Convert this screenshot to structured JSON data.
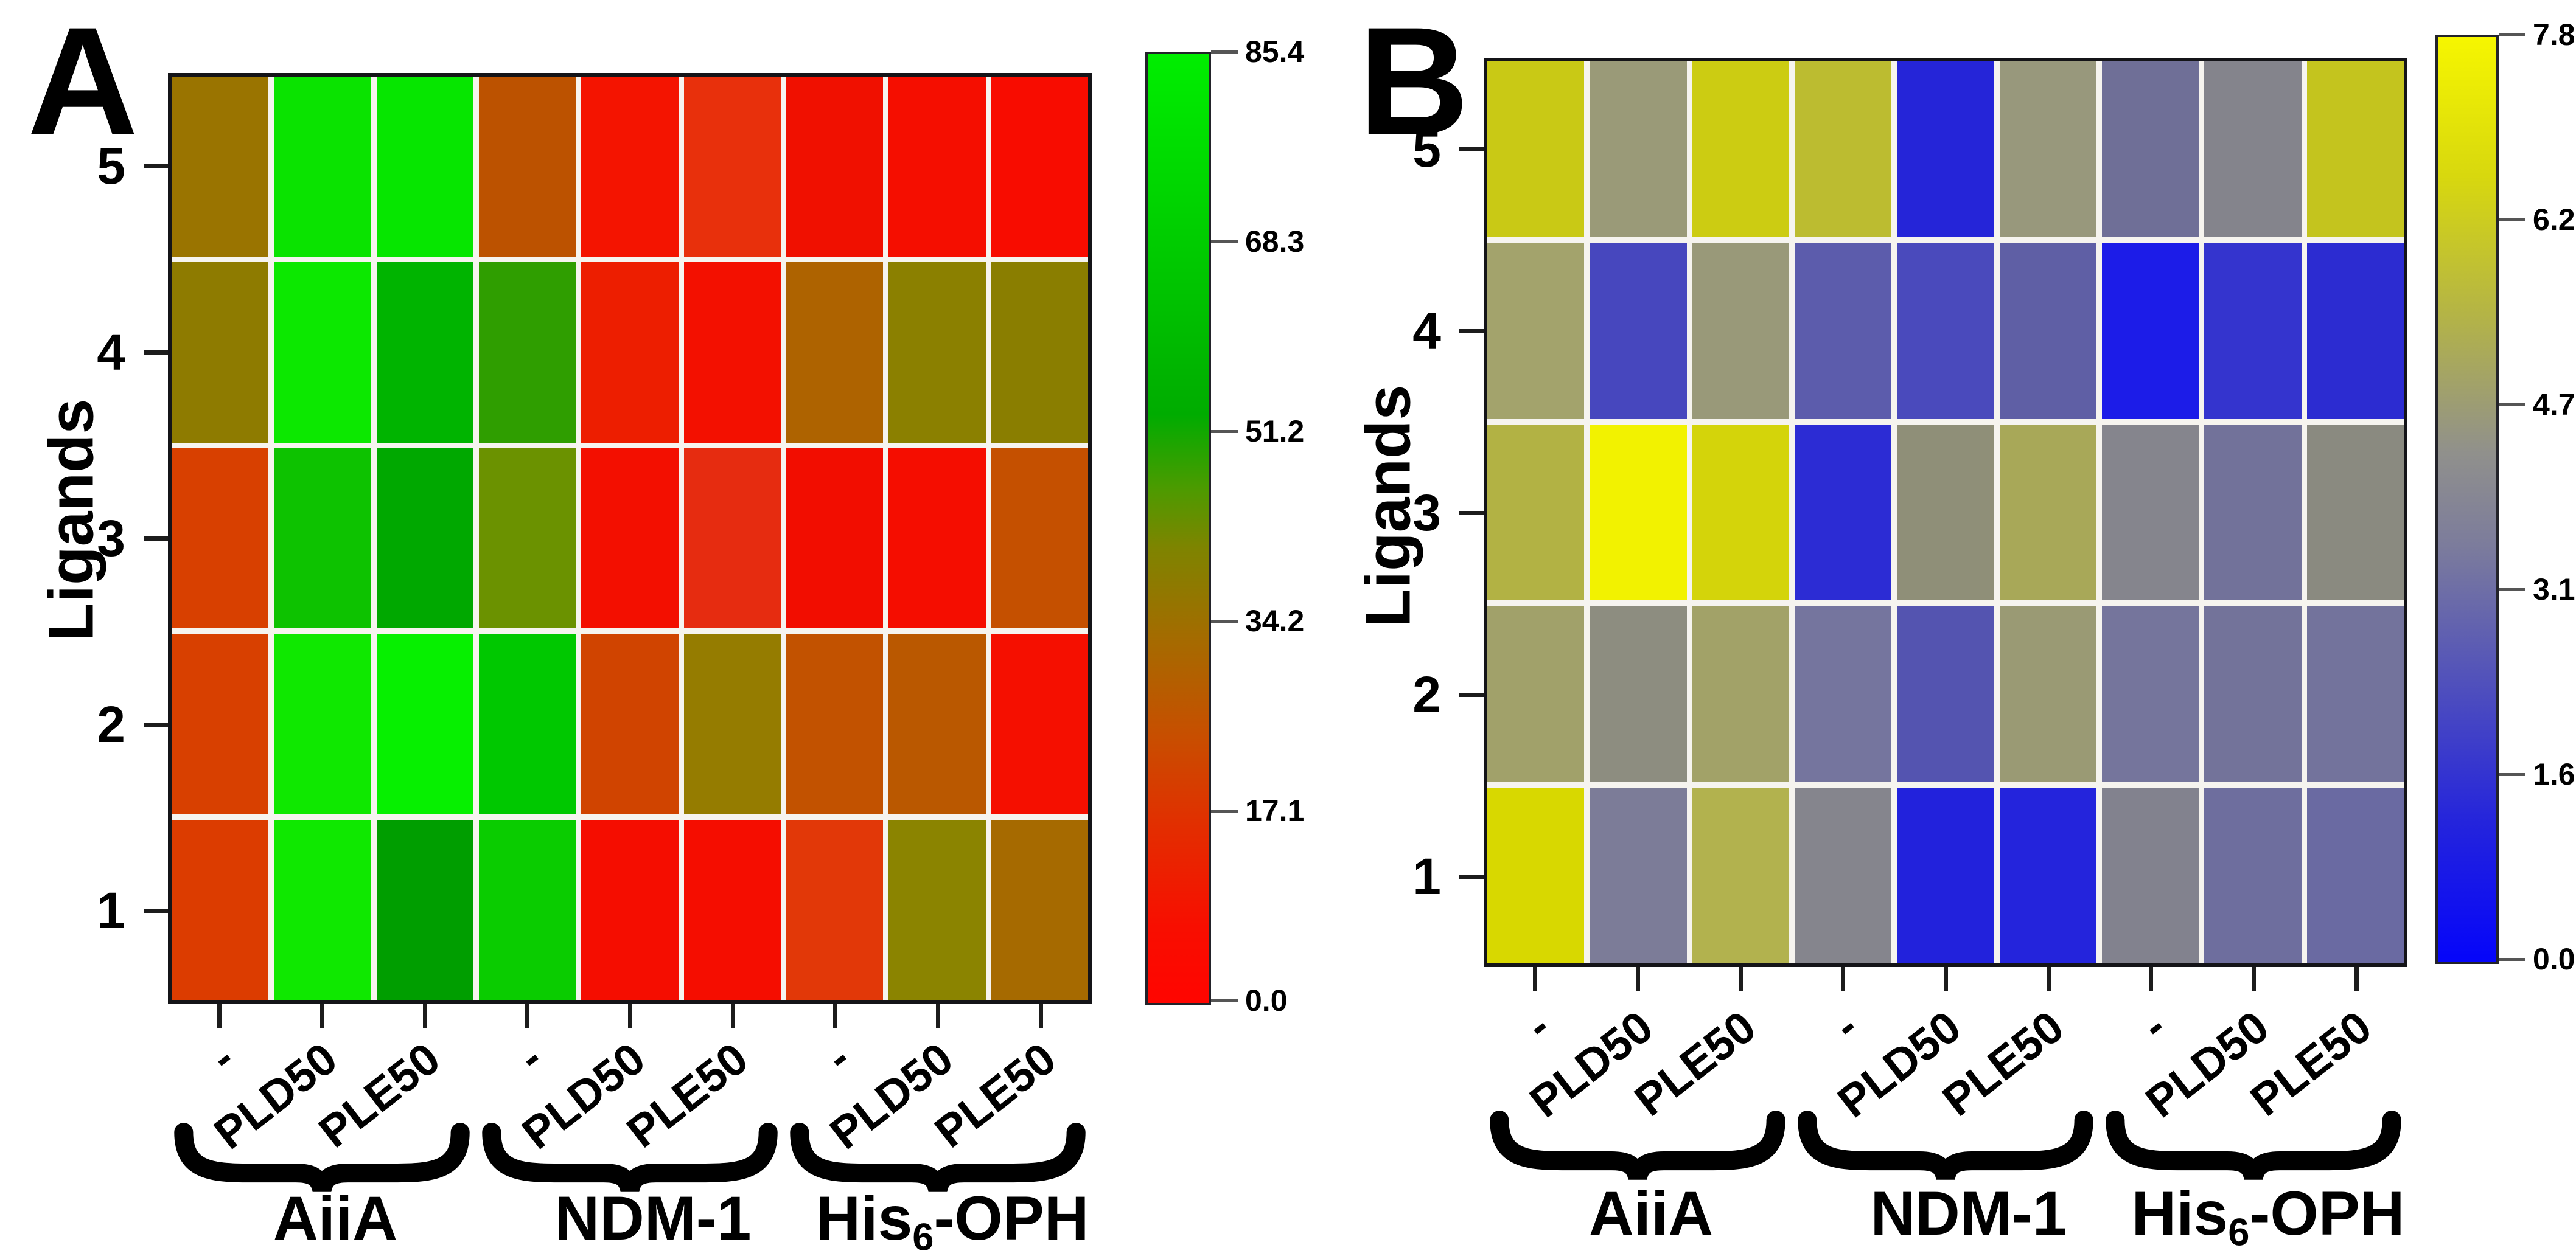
{
  "figure": {
    "background": "#ffffff"
  },
  "panels": [
    {
      "label": "A",
      "y_axis_title": "Ligands",
      "y_tick_labels": [
        "5",
        "4",
        "3",
        "2",
        "1"
      ],
      "x_tick_labels": [
        "-",
        "PLD50",
        "PLE50",
        "-",
        "PLD50",
        "PLE50",
        "-",
        "PLD50",
        "PLE50"
      ],
      "group_labels": [
        {
          "pre": "AiiA",
          "sub": "",
          "post": ""
        },
        {
          "pre": "NDM-1",
          "sub": "",
          "post": ""
        },
        {
          "pre": "His",
          "sub": "6",
          "post": "-OPH"
        }
      ],
      "colorbar": {
        "tick_labels": [
          "85.4",
          "68.3",
          "51.2",
          "34.2",
          "17.1",
          "0.0"
        ],
        "gradient": [
          [
            0,
            "#00ee00"
          ],
          [
            20,
            "#00cc00"
          ],
          [
            38,
            "#00ac00"
          ],
          [
            46,
            "#4e9a00"
          ],
          [
            52,
            "#7e8400"
          ],
          [
            62,
            "#a66a00"
          ],
          [
            72,
            "#c84e00"
          ],
          [
            82,
            "#e42c00"
          ],
          [
            92,
            "#f80e00"
          ],
          [
            100,
            "#ff0500"
          ]
        ]
      },
      "cell_colors": [
        [
          "#9A7400",
          "#0AE300",
          "#06E600",
          "#BC5200",
          "#F41400",
          "#E8300C",
          "#F01000",
          "#F50E00",
          "#F80C00"
        ],
        [
          "#8E7B00",
          "#0CE800",
          "#00B400",
          "#2F9E00",
          "#ED1E00",
          "#F31000",
          "#AE6300",
          "#8B8000",
          "#8A7E00"
        ],
        [
          "#D84000",
          "#0DC200",
          "#00A800",
          "#6B9200",
          "#F30F00",
          "#E62C10",
          "#F20D00",
          "#F50D00",
          "#C55000"
        ],
        [
          "#D84000",
          "#0FE800",
          "#06F000",
          "#00C800",
          "#D04400",
          "#957C00",
          "#C25200",
          "#BA5800",
          "#F50F00"
        ],
        [
          "#DC3C00",
          "#0FE800",
          "#009E00",
          "#0ACC00",
          "#F50D00",
          "#F50D00",
          "#E23808",
          "#8B8400",
          "#A66A00"
        ]
      ]
    },
    {
      "label": "B",
      "y_axis_title": "Ligands",
      "y_tick_labels": [
        "5",
        "4",
        "3",
        "2",
        "1"
      ],
      "x_tick_labels": [
        "-",
        "PLD50",
        "PLE50",
        "-",
        "PLD50",
        "PLE50",
        "-",
        "PLD50",
        "PLE50"
      ],
      "group_labels": [
        {
          "pre": "AiiA",
          "sub": "",
          "post": ""
        },
        {
          "pre": "NDM-1",
          "sub": "",
          "post": ""
        },
        {
          "pre": "His",
          "sub": "6",
          "post": "-OPH"
        }
      ],
      "colorbar": {
        "tick_labels": [
          "7.8",
          "6.2",
          "4.7",
          "3.1",
          "1.6",
          "0.0"
        ],
        "gradient": [
          [
            0,
            "#f6f600"
          ],
          [
            15,
            "#d8d80e"
          ],
          [
            30,
            "#b4b446"
          ],
          [
            45,
            "#90908c"
          ],
          [
            55,
            "#7c7c9c"
          ],
          [
            70,
            "#5050bc"
          ],
          [
            85,
            "#2424dc"
          ],
          [
            100,
            "#0505fa"
          ]
        ]
      },
      "cell_colors": [
        [
          "#C9C915",
          "#9A9A78",
          "#CCCC12",
          "#BCBC30",
          "#2525D8",
          "#98987C",
          "#6F6F97",
          "#84848C",
          "#C4C41E"
        ],
        [
          "#A3A36C",
          "#4747BE",
          "#999979",
          "#5C5CAC",
          "#4A4ABC",
          "#5F5FA5",
          "#1C1CE8",
          "#3434CE",
          "#2C2CD1"
        ],
        [
          "#B2B244",
          "#F2F200",
          "#D4D40A",
          "#2C2CD4",
          "#8F8F78",
          "#A8A858",
          "#85858D",
          "#72729A",
          "#8A8A80"
        ],
        [
          "#A1A16A",
          "#8D8D80",
          "#A2A268",
          "#75759E",
          "#5454B0",
          "#9A9A74",
          "#75759C",
          "#73739A",
          "#73739C"
        ],
        [
          "#D8D800",
          "#7C7C98",
          "#B2B24E",
          "#85858D",
          "#2222DC",
          "#2424DC",
          "#82828E",
          "#6E6E9E",
          "#6A6AA2"
        ]
      ]
    }
  ],
  "chart_data": [
    {
      "type": "heatmap",
      "title": "A",
      "ylabel": "Ligands",
      "y_categories": [
        "5",
        "4",
        "3",
        "2",
        "1"
      ],
      "x_categories": [
        "-",
        "PLD50",
        "PLE50",
        "-",
        "PLD50",
        "PLE50",
        "-",
        "PLD50",
        "PLE50"
      ],
      "x_groups": [
        "AiiA",
        "NDM-1",
        "His6-OPH"
      ],
      "colormap": "red-olive-green",
      "color_range": [
        0.0,
        85.4
      ],
      "colorbar_ticks": [
        85.4,
        68.3,
        51.2,
        34.2,
        17.1,
        0.0
      ],
      "legend_position": "right",
      "values_rows_top_to_bottom": [
        [
          36,
          79,
          80,
          25,
          4,
          11,
          4,
          3,
          3
        ],
        [
          40,
          81,
          58,
          52,
          7,
          4,
          31,
          41,
          40
        ],
        [
          15,
          68,
          55,
          46,
          4,
          11,
          4,
          3,
          22
        ],
        [
          15,
          81,
          83,
          62,
          18,
          39,
          23,
          26,
          3
        ],
        [
          14,
          81,
          53,
          70,
          3,
          3,
          13,
          42,
          33
        ]
      ]
    },
    {
      "type": "heatmap",
      "title": "B",
      "ylabel": "Ligands",
      "y_categories": [
        "5",
        "4",
        "3",
        "2",
        "1"
      ],
      "x_categories": [
        "-",
        "PLD50",
        "PLE50",
        "-",
        "PLD50",
        "PLE50",
        "-",
        "PLD50",
        "PLE50"
      ],
      "x_groups": [
        "AiiA",
        "NDM-1",
        "His6-OPH"
      ],
      "colormap": "blue-gray-yellow",
      "color_range": [
        0.0,
        7.8
      ],
      "colorbar_ticks": [
        7.8,
        6.2,
        4.7,
        3.1,
        1.6,
        0.0
      ],
      "legend_position": "right",
      "values_rows_top_to_bottom": [
        [
          6.2,
          4.7,
          6.3,
          5.8,
          1.1,
          4.7,
          3.4,
          4.1,
          6.0
        ],
        [
          5.0,
          2.2,
          4.7,
          2.8,
          2.3,
          2.9,
          0.9,
          1.6,
          1.4
        ],
        [
          5.5,
          7.4,
          6.5,
          1.4,
          4.4,
          5.1,
          4.1,
          3.5,
          4.2
        ],
        [
          4.9,
          4.3,
          5.0,
          3.6,
          2.6,
          4.7,
          3.6,
          3.5,
          3.5
        ],
        [
          6.6,
          3.8,
          5.5,
          4.1,
          1.0,
          1.1,
          4.0,
          3.4,
          3.2
        ]
      ]
    }
  ]
}
